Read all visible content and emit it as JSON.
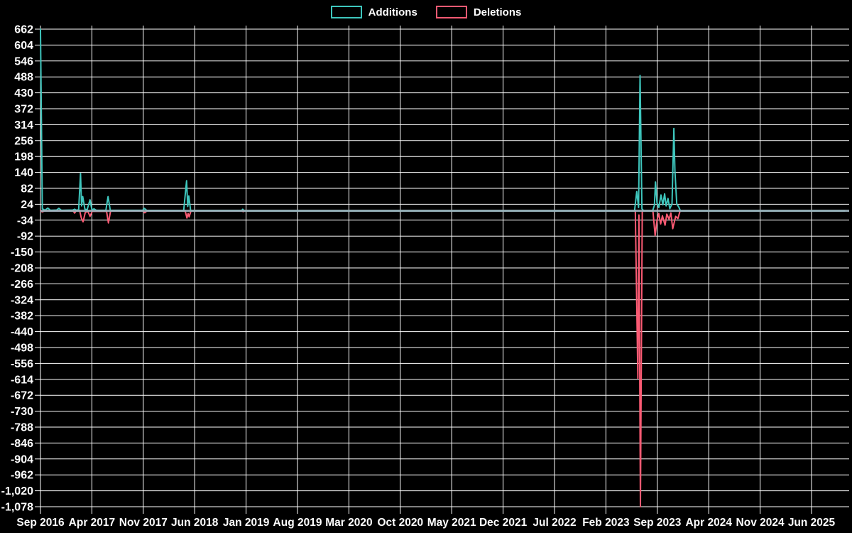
{
  "page": {
    "background": "#000000"
  },
  "legend": {
    "items": [
      {
        "label": "Additions",
        "color": "#3ec6bd"
      },
      {
        "label": "Deletions",
        "color": "#fa5a73"
      }
    ]
  },
  "chart_data": {
    "type": "line",
    "title": "",
    "xlabel": "",
    "ylabel": "",
    "grid": true,
    "legend_position": "top-center",
    "background": "#000000",
    "grid_color": "#ffffff",
    "zero_line_color": "#9eb4be",
    "x_axis": {
      "unit": "months since Sep 2016",
      "range": [
        0,
        109.5
      ],
      "labels": [
        "Sep 2016",
        "Apr 2017",
        "Nov 2017",
        "Jun 2018",
        "Jan 2019",
        "Aug 2019",
        "Mar 2020",
        "Oct 2020",
        "May 2021",
        "Dec 2021",
        "Jul 2022",
        "Feb 2023",
        "Sep 2023",
        "Apr 2024",
        "Nov 2024",
        "Jun 2025"
      ],
      "label_positions": [
        0,
        7,
        14,
        21,
        28,
        35,
        42,
        49,
        56,
        63,
        70,
        77,
        84,
        91,
        98,
        105
      ]
    },
    "y_axis": {
      "range": [
        -1078,
        662
      ],
      "tick_step": 58,
      "ticks": [
        662,
        604,
        546,
        488,
        430,
        372,
        314,
        256,
        198,
        140,
        82,
        24,
        -34,
        -92,
        -150,
        -208,
        -266,
        -324,
        -382,
        -440,
        -498,
        -556,
        -614,
        -672,
        -730,
        -788,
        -846,
        -904,
        -962,
        -1020,
        -1078
      ],
      "tick_labels": [
        "662",
        "604",
        "546",
        "488",
        "430",
        "372",
        "314",
        "256",
        "198",
        "140",
        "82",
        "24",
        "-34",
        "-92",
        "-150",
        "-208",
        "-266",
        "-324",
        "-382",
        "-440",
        "-498",
        "-556",
        "-614",
        "-672",
        "-730",
        "-788",
        "-846",
        "-904",
        "-962",
        "-1,020",
        "-1,078"
      ]
    },
    "series": [
      {
        "name": "Additions",
        "color": "#3ec6bd",
        "points": [
          [
            0,
            662
          ],
          [
            0.25,
            8
          ],
          [
            0.6,
            2
          ],
          [
            1.0,
            10
          ],
          [
            1.35,
            2
          ],
          [
            2.2,
            3
          ],
          [
            2.5,
            9
          ],
          [
            2.85,
            2
          ],
          [
            4.4,
            3
          ],
          [
            4.65,
            6
          ],
          [
            4.9,
            2
          ],
          [
            5.2,
            4
          ],
          [
            5.45,
            136
          ],
          [
            5.6,
            18
          ],
          [
            5.75,
            52
          ],
          [
            6.05,
            6
          ],
          [
            6.35,
            4
          ],
          [
            6.75,
            40
          ],
          [
            7.0,
            4
          ],
          [
            7.3,
            7
          ],
          [
            7.6,
            2
          ],
          [
            8.9,
            2
          ],
          [
            9.2,
            52
          ],
          [
            9.5,
            2
          ],
          [
            13.9,
            2
          ],
          [
            14.15,
            9
          ],
          [
            14.45,
            2
          ],
          [
            19.5,
            1
          ],
          [
            19.9,
            110
          ],
          [
            20.05,
            16
          ],
          [
            20.2,
            54
          ],
          [
            20.45,
            1
          ],
          [
            27.4,
            1
          ],
          [
            27.55,
            6
          ],
          [
            27.75,
            0
          ],
          [
            80.9,
            0
          ],
          [
            81.2,
            70
          ],
          [
            81.45,
            12
          ],
          [
            81.65,
            493
          ],
          [
            81.9,
            8
          ],
          [
            82.15,
            0
          ],
          [
            83.35,
            0
          ],
          [
            83.6,
            20
          ],
          [
            83.75,
            105
          ],
          [
            83.95,
            30
          ],
          [
            84.2,
            12
          ],
          [
            84.5,
            58
          ],
          [
            84.75,
            22
          ],
          [
            85.0,
            62
          ],
          [
            85.2,
            18
          ],
          [
            85.45,
            45
          ],
          [
            85.7,
            8
          ],
          [
            86.0,
            25
          ],
          [
            86.25,
            300
          ],
          [
            86.4,
            145
          ],
          [
            86.65,
            25
          ],
          [
            86.9,
            15
          ],
          [
            87.15,
            0
          ],
          [
            109.5,
            0
          ]
        ]
      },
      {
        "name": "Deletions",
        "color": "#fa5a73",
        "points": [
          [
            0,
            0
          ],
          [
            0.25,
            -4
          ],
          [
            0.55,
            0
          ],
          [
            4.45,
            0
          ],
          [
            4.65,
            -8
          ],
          [
            4.85,
            0
          ],
          [
            5.35,
            0
          ],
          [
            5.55,
            -25
          ],
          [
            5.8,
            -40
          ],
          [
            6.1,
            -6
          ],
          [
            6.45,
            -2
          ],
          [
            6.75,
            -20
          ],
          [
            7.05,
            -2
          ],
          [
            9.0,
            -2
          ],
          [
            9.25,
            -44
          ],
          [
            9.55,
            0
          ],
          [
            13.95,
            0
          ],
          [
            14.2,
            -7
          ],
          [
            14.5,
            0
          ],
          [
            19.7,
            0
          ],
          [
            19.95,
            -26
          ],
          [
            20.1,
            -10
          ],
          [
            20.25,
            -22
          ],
          [
            20.5,
            0
          ],
          [
            27.45,
            0
          ],
          [
            27.6,
            -3
          ],
          [
            27.8,
            0
          ],
          [
            81.0,
            0
          ],
          [
            81.35,
            -610
          ],
          [
            81.5,
            -15
          ],
          [
            81.7,
            -1078
          ],
          [
            81.95,
            0
          ],
          [
            83.4,
            0
          ],
          [
            83.7,
            -90
          ],
          [
            83.95,
            -35
          ],
          [
            84.2,
            -10
          ],
          [
            84.45,
            -48
          ],
          [
            84.7,
            -18
          ],
          [
            85.05,
            -52
          ],
          [
            85.3,
            -12
          ],
          [
            85.6,
            -30
          ],
          [
            85.85,
            -8
          ],
          [
            86.1,
            -65
          ],
          [
            86.5,
            -20
          ],
          [
            86.8,
            -28
          ],
          [
            87.1,
            0
          ],
          [
            109.5,
            0
          ]
        ]
      }
    ]
  }
}
